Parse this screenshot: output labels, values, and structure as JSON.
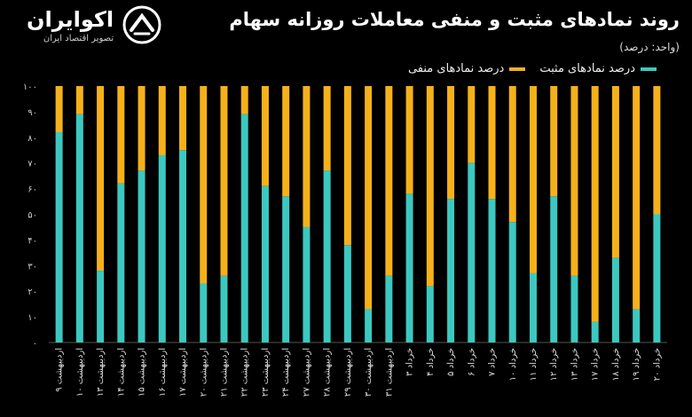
{
  "brand": {
    "name": "اکوایران",
    "tagline": "تصویر اقتصاد ایران"
  },
  "chart_data": {
    "type": "bar",
    "stacked": true,
    "title": "روند نمادهای مثبت و منفی معاملات روزانه سهام",
    "unit": "(واحد: درصد)",
    "categories": [
      "۹ اردیبهشت",
      "۱۰ اردیبهشت",
      "۱۳ اردیبهشت",
      "۱۴ اردیبهشت",
      "۱۵ اردیبهشت",
      "۱۶ اردیبهشت",
      "۱۷ اردیبهشت",
      "۲۰ اردیبهشت",
      "۲۱ اردیبهشت",
      "۲۲ اردیبهشت",
      "۲۳ اردیبهشت",
      "۲۴ اردیبهشت",
      "۲۷ اردیبهشت",
      "۲۸ اردیبهشت",
      "۲۹ اردیبهشت",
      "۳۰ اردیبهشت",
      "۳۱ اردیبهشت",
      "۳ خرداد",
      "۴ خرداد",
      "۵ خرداد",
      "۶ خرداد",
      "۷ خرداد",
      "۱۰ خرداد",
      "۱۱ خرداد",
      "۱۲ خرداد",
      "۱۳ خرداد",
      "۱۷ خرداد",
      "۱۸ خرداد",
      "۱۹ خرداد",
      "۲۰ خرداد"
    ],
    "series": [
      {
        "name": "درصد نمادهای مثبت",
        "color": "#3cc8c0",
        "values": [
          82,
          89,
          28,
          62,
          67,
          73,
          75,
          23,
          26,
          89,
          61,
          57,
          45,
          67,
          38,
          13,
          26,
          58,
          22,
          56,
          70,
          56,
          47,
          27,
          57,
          26,
          8,
          33,
          13,
          50
        ]
      },
      {
        "name": "درصد نمادهای منفی",
        "color": "#f5b11a",
        "values": [
          18,
          11,
          72,
          38,
          33,
          27,
          25,
          77,
          74,
          11,
          39,
          43,
          55,
          33,
          62,
          87,
          74,
          42,
          78,
          44,
          30,
          44,
          53,
          73,
          43,
          74,
          92,
          67,
          87,
          50
        ]
      }
    ],
    "yticks": [
      "۰",
      "۱۰",
      "۲۰",
      "۳۰",
      "۴۰",
      "۵۰",
      "۶۰",
      "۷۰",
      "۸۰",
      "۹۰",
      "۱۰۰"
    ],
    "ylim": [
      0,
      100
    ],
    "legend_position": "top-right",
    "grid": false
  }
}
